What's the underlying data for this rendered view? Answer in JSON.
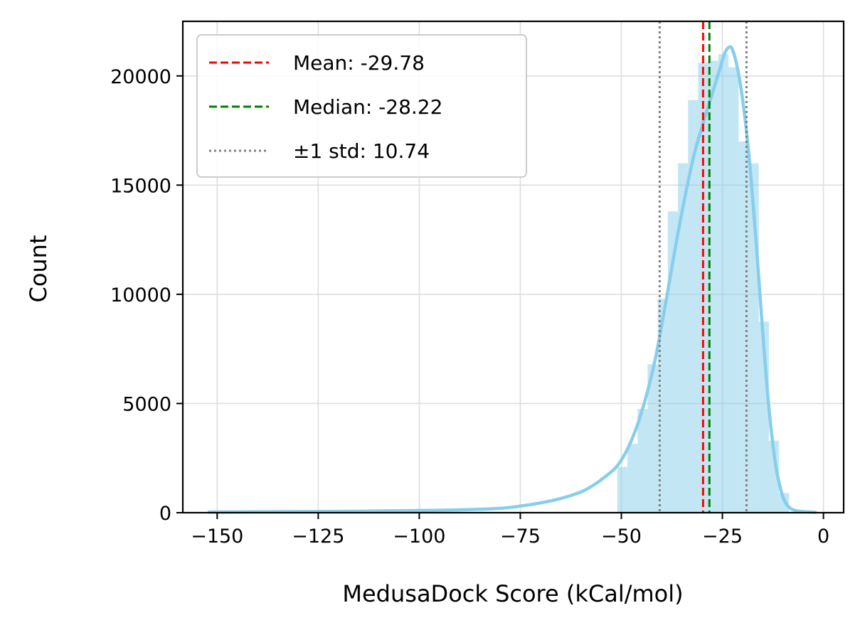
{
  "chart_data": {
    "type": "histogram",
    "title": "",
    "xlabel": "MedusaDock Score (kCal/mol)",
    "ylabel": "Count",
    "xlim": [
      -158.5,
      5
    ],
    "ylim": [
      0,
      22500
    ],
    "xticks": [
      -150,
      -125,
      -100,
      -75,
      -50,
      -25,
      0
    ],
    "xtick_labels": [
      "−150",
      "−125",
      "−100",
      "−75",
      "−50",
      "−25",
      "0"
    ],
    "yticks": [
      0,
      5000,
      10000,
      15000,
      20000
    ],
    "ytick_labels": [
      "0",
      "5000",
      "10000",
      "15000",
      "20000"
    ],
    "grid": true,
    "legend_position": "top-left",
    "bar_color": "#87ceeb",
    "kde_color": "#87ceeb",
    "bins": {
      "edges": [
        -51,
        -48.5,
        -46,
        -43.5,
        -41,
        -38.5,
        -36,
        -33.5,
        -31,
        -28.5,
        -26,
        -23.5,
        -21,
        -18.5,
        -16,
        -13.5,
        -11,
        -8.5
      ],
      "counts": [
        2100,
        3150,
        4750,
        6800,
        9800,
        13800,
        16000,
        18900,
        20600,
        20700,
        21000,
        20400,
        17000,
        16000,
        8750,
        3300,
        900
      ]
    },
    "kde": {
      "x": [
        -152,
        -140,
        -120,
        -100,
        -90,
        -80,
        -75,
        -70,
        -65,
        -60,
        -57,
        -54,
        -51,
        -48,
        -45,
        -42,
        -40,
        -38,
        -36,
        -34,
        -32,
        -30,
        -28,
        -26,
        -24.5,
        -23.5,
        -22.5,
        -21,
        -19.5,
        -18,
        -16.5,
        -15,
        -13.5,
        -12,
        -11,
        -10,
        -9,
        -8,
        -7,
        -5,
        -2
      ],
      "y": [
        30,
        40,
        60,
        100,
        130,
        200,
        300,
        450,
        650,
        950,
        1250,
        1650,
        2150,
        3100,
        4600,
        6700,
        8600,
        10700,
        12800,
        14700,
        16400,
        17700,
        18900,
        20100,
        21000,
        21300,
        21200,
        20100,
        18200,
        15500,
        12000,
        8200,
        4800,
        2400,
        1400,
        700,
        350,
        180,
        100,
        50,
        20
      ]
    },
    "lines": [
      {
        "name": "Mean: -29.78",
        "x": -29.78,
        "color": "#ff0000",
        "style": "dashed"
      },
      {
        "name": "Median: -28.22",
        "x": -28.22,
        "color": "#008000",
        "style": "dashed"
      },
      {
        "name": "±1 std: 10.74",
        "x": [
          -40.52,
          -19.04
        ],
        "color": "#808080",
        "style": "dotted"
      }
    ],
    "legend": [
      {
        "label": "Mean: -29.78",
        "color": "#ff0000",
        "style": "dashed"
      },
      {
        "label": "Median: -28.22",
        "color": "#008000",
        "style": "dashed"
      },
      {
        "label": "±1 std: 10.74",
        "color": "#808080",
        "style": "dotted"
      }
    ]
  }
}
